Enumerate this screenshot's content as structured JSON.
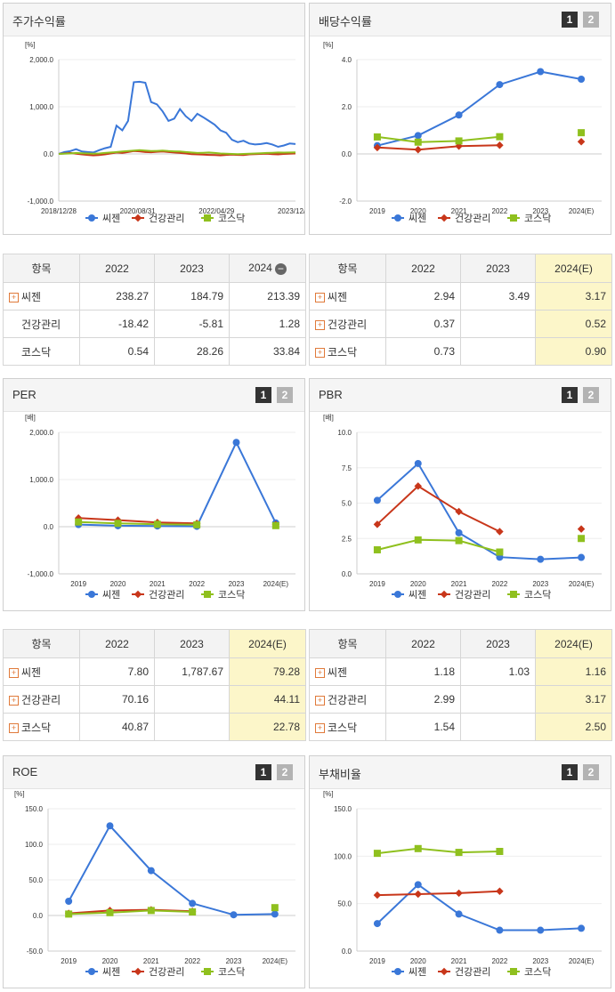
{
  "colors": {
    "series1": "#3a77d8",
    "series2": "#c8361a",
    "series3": "#8fc01e"
  },
  "pager": {
    "p1": "1",
    "p2": "2"
  },
  "panels": {
    "stock": {
      "title": "주가수익률"
    },
    "dividend": {
      "title": "배당수익률"
    },
    "per": {
      "title": "PER"
    },
    "pbr": {
      "title": "PBR"
    },
    "roe": {
      "title": "ROE"
    },
    "debt": {
      "title": "부채비율"
    }
  },
  "tables": {
    "stock": {
      "headers": [
        "항목",
        "2022",
        "2023",
        "2024"
      ],
      "rows": [
        {
          "name": "씨젠",
          "values": [
            "238.27",
            "184.79",
            "213.39"
          ],
          "expand": true
        },
        {
          "name": "건강관리",
          "values": [
            "-18.42",
            "-5.81",
            "1.28"
          ],
          "expand": false
        },
        {
          "name": "코스닥",
          "values": [
            "0.54",
            "28.26",
            "33.84"
          ],
          "expand": false
        }
      ]
    },
    "dividend": {
      "headers": [
        "항목",
        "2022",
        "2023",
        "2024(E)"
      ],
      "rows": [
        {
          "name": "씨젠",
          "values": [
            "2.94",
            "3.49",
            "3.17"
          ],
          "expand": true
        },
        {
          "name": "건강관리",
          "values": [
            "0.37",
            "",
            "0.52"
          ],
          "expand": true
        },
        {
          "name": "코스닥",
          "values": [
            "0.73",
            "",
            "0.90"
          ],
          "expand": true
        }
      ]
    },
    "per": {
      "headers": [
        "항목",
        "2022",
        "2023",
        "2024(E)"
      ],
      "rows": [
        {
          "name": "씨젠",
          "values": [
            "7.80",
            "1,787.67",
            "79.28"
          ],
          "expand": true
        },
        {
          "name": "건강관리",
          "values": [
            "70.16",
            "",
            "44.11"
          ],
          "expand": true
        },
        {
          "name": "코스닥",
          "values": [
            "40.87",
            "",
            "22.78"
          ],
          "expand": true
        }
      ]
    },
    "pbr": {
      "headers": [
        "항목",
        "2022",
        "2023",
        "2024(E)"
      ],
      "rows": [
        {
          "name": "씨젠",
          "values": [
            "1.18",
            "1.03",
            "1.16"
          ],
          "expand": true
        },
        {
          "name": "건강관리",
          "values": [
            "2.99",
            "",
            "3.17"
          ],
          "expand": true
        },
        {
          "name": "코스닥",
          "values": [
            "1.54",
            "",
            "2.50"
          ],
          "expand": true
        }
      ]
    }
  },
  "chart_data": [
    {
      "id": "stock",
      "type": "line",
      "ylabel": "[%]",
      "ylim": [
        -1000,
        2000
      ],
      "yticks": [
        "2,000.0",
        "1,000.0",
        "0.0",
        "-1,000.0"
      ],
      "xticks": [
        "2018/12/28",
        "2020/08/31",
        "2022/04/29",
        "2023/12/28"
      ],
      "series": [
        {
          "name": "씨젠",
          "values": [
            0,
            40,
            60,
            100,
            50,
            40,
            30,
            80,
            120,
            150,
            600,
            500,
            700,
            1520,
            1530,
            1510,
            1100,
            1050,
            900,
            700,
            750,
            950,
            800,
            700,
            850,
            780,
            700,
            620,
            500,
            450,
            300,
            250,
            280,
            220,
            200,
            210,
            230,
            200,
            150,
            180,
            220,
            210
          ]
        },
        {
          "name": "건강관리",
          "values": [
            0,
            10,
            20,
            5,
            -10,
            -20,
            -30,
            -25,
            -10,
            10,
            30,
            20,
            40,
            60,
            55,
            40,
            35,
            45,
            50,
            40,
            30,
            20,
            10,
            -5,
            -10,
            -15,
            -20,
            -25,
            -30,
            -20,
            -15,
            -20,
            -25,
            -10,
            -5,
            0,
            5,
            -5,
            -10,
            0,
            5,
            10
          ]
        },
        {
          "name": "코스닥",
          "values": [
            0,
            5,
            10,
            20,
            15,
            10,
            5,
            10,
            20,
            30,
            40,
            50,
            60,
            70,
            80,
            70,
            60,
            65,
            70,
            60,
            55,
            50,
            40,
            30,
            20,
            25,
            30,
            20,
            10,
            5,
            0,
            -5,
            0,
            5,
            10,
            15,
            20,
            25,
            30,
            28,
            30,
            33
          ]
        }
      ]
    },
    {
      "id": "dividend",
      "type": "line",
      "ylabel": "[%]",
      "ylim": [
        -2,
        4
      ],
      "yticks": [
        "4.0",
        "2.0",
        "0.0",
        "-2.0"
      ],
      "categories": [
        "2019",
        "2020",
        "2021",
        "2022",
        "2023",
        "2024(E)"
      ],
      "series": [
        {
          "name": "씨젠",
          "values": [
            0.35,
            0.78,
            1.65,
            2.94,
            3.49,
            3.17
          ]
        },
        {
          "name": "건강관리",
          "values": [
            0.27,
            0.18,
            0.33,
            0.37,
            null,
            0.52
          ]
        },
        {
          "name": "코스닥",
          "values": [
            0.72,
            0.5,
            0.55,
            0.73,
            null,
            0.9
          ]
        }
      ]
    },
    {
      "id": "per",
      "type": "line",
      "ylabel": "[배]",
      "ylim": [
        -1000,
        2000
      ],
      "yticks": [
        "2,000.0",
        "1,000.0",
        "0.0",
        "-1,000.0"
      ],
      "categories": [
        "2019",
        "2020",
        "2021",
        "2022",
        "2023",
        "2024(E)"
      ],
      "series": [
        {
          "name": "씨젠",
          "values": [
            45,
            20,
            15,
            7.8,
            1787.67,
            79.28
          ]
        },
        {
          "name": "건강관리",
          "values": [
            185,
            140,
            90,
            70.16,
            null,
            44.11
          ]
        },
        {
          "name": "코스닥",
          "values": [
            100,
            70,
            50,
            40.87,
            null,
            22.78
          ]
        }
      ]
    },
    {
      "id": "pbr",
      "type": "line",
      "ylabel": "[배]",
      "ylim": [
        0,
        10
      ],
      "yticks": [
        "10.0",
        "7.5",
        "5.0",
        "2.5",
        "0.0"
      ],
      "categories": [
        "2019",
        "2020",
        "2021",
        "2022",
        "2023",
        "2024(E)"
      ],
      "series": [
        {
          "name": "씨젠",
          "values": [
            5.2,
            7.8,
            2.9,
            1.18,
            1.03,
            1.16
          ]
        },
        {
          "name": "건강관리",
          "values": [
            3.5,
            6.2,
            4.4,
            2.99,
            null,
            3.17
          ]
        },
        {
          "name": "코스닥",
          "values": [
            1.7,
            2.4,
            2.35,
            1.54,
            null,
            2.5
          ]
        }
      ]
    },
    {
      "id": "roe",
      "type": "line",
      "ylabel": "[%]",
      "ylim": [
        -50,
        150
      ],
      "yticks": [
        "150.0",
        "100.0",
        "50.0",
        "0.0",
        "-50.0"
      ],
      "categories": [
        "2019",
        "2020",
        "2021",
        "2022",
        "2023",
        "2024(E)"
      ],
      "series": [
        {
          "name": "씨젠",
          "values": [
            20,
            126,
            63,
            17,
            1,
            2
          ]
        },
        {
          "name": "건강관리",
          "values": [
            3,
            7,
            8,
            6,
            null,
            null
          ]
        },
        {
          "name": "코스닥",
          "values": [
            2,
            4,
            7,
            5,
            null,
            11
          ]
        }
      ]
    },
    {
      "id": "debt",
      "type": "line",
      "ylabel": "[%]",
      "ylim": [
        0,
        150
      ],
      "yticks": [
        "150.0",
        "100.0",
        "50.0",
        "0.0"
      ],
      "categories": [
        "2019",
        "2020",
        "2021",
        "2022",
        "2023",
        "2024(E)"
      ],
      "series": [
        {
          "name": "씨젠",
          "values": [
            29,
            70,
            39,
            22,
            22,
            24
          ]
        },
        {
          "name": "건강관리",
          "values": [
            59,
            60,
            61,
            63,
            null,
            null
          ]
        },
        {
          "name": "코스닥",
          "values": [
            103,
            108,
            104,
            105,
            null,
            null
          ]
        }
      ]
    }
  ]
}
